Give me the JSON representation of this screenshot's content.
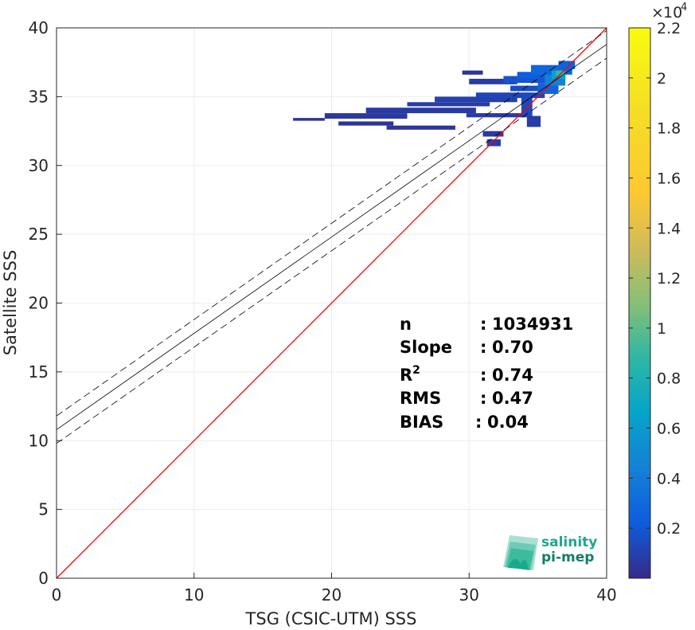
{
  "chart_data": {
    "type": "heatmap",
    "xlabel": "TSG (CSIC-UTM) SSS",
    "ylabel": "Satellite SSS",
    "xlim": [
      0,
      40
    ],
    "ylim": [
      0,
      40
    ],
    "xticks": [
      "0",
      "10",
      "20",
      "30",
      "40"
    ],
    "yticks": [
      "0",
      "5",
      "10",
      "15",
      "20",
      "25",
      "30",
      "35",
      "40"
    ],
    "grid": true,
    "lines": [
      {
        "name": "1:1",
        "color": "#ff0000",
        "style": "solid",
        "x": [
          0,
          40
        ],
        "y": [
          0,
          40
        ]
      },
      {
        "name": "fit",
        "color": "#000000",
        "style": "solid",
        "x": [
          0,
          40
        ],
        "y": [
          10.8,
          38.8
        ]
      },
      {
        "name": "fit+1std",
        "color": "#000000",
        "style": "dashed",
        "x": [
          0,
          40
        ],
        "y": [
          11.8,
          39.8
        ]
      },
      {
        "name": "fit-1std",
        "color": "#000000",
        "style": "dashed",
        "x": [
          0,
          40
        ],
        "y": [
          9.8,
          37.8
        ]
      }
    ],
    "density_blocks": [
      {
        "x0": 17.2,
        "x1": 19.5,
        "y0": 33.25,
        "y1": 33.45,
        "v": 300
      },
      {
        "x0": 19.5,
        "x1": 25.5,
        "y0": 33.4,
        "y1": 33.8,
        "v": 600
      },
      {
        "x0": 20.5,
        "x1": 24.5,
        "y0": 32.9,
        "y1": 33.2,
        "v": 400
      },
      {
        "x0": 22.5,
        "x1": 30.5,
        "y0": 33.8,
        "y1": 34.2,
        "v": 700
      },
      {
        "x0": 24.0,
        "x1": 29.0,
        "y0": 32.6,
        "y1": 32.9,
        "v": 500
      },
      {
        "x0": 25.5,
        "x1": 31.5,
        "y0": 34.3,
        "y1": 34.6,
        "v": 800
      },
      {
        "x0": 27.5,
        "x1": 33.5,
        "y0": 34.6,
        "y1": 35.0,
        "v": 1000
      },
      {
        "x0": 30.5,
        "x1": 35.5,
        "y0": 34.9,
        "y1": 35.3,
        "v": 1200
      },
      {
        "x0": 33.0,
        "x1": 36.0,
        "y0": 35.4,
        "y1": 35.8,
        "v": 1500
      },
      {
        "x0": 30.0,
        "x1": 33.5,
        "y0": 35.9,
        "y1": 36.3,
        "v": 900
      },
      {
        "x0": 32.5,
        "x1": 36.5,
        "y0": 36.0,
        "y1": 36.5,
        "v": 1800
      },
      {
        "x0": 33.5,
        "x1": 37.0,
        "y0": 36.3,
        "y1": 36.8,
        "v": 2200
      },
      {
        "x0": 34.5,
        "x1": 37.5,
        "y0": 36.6,
        "y1": 37.3,
        "v": 2800
      },
      {
        "x0": 36.5,
        "x1": 37.7,
        "y0": 37.0,
        "y1": 37.6,
        "v": 2500
      },
      {
        "x0": 29.5,
        "x1": 31.0,
        "y0": 36.6,
        "y1": 36.9,
        "v": 400
      },
      {
        "x0": 29.8,
        "x1": 34.5,
        "y0": 33.5,
        "y1": 33.8,
        "v": 700
      },
      {
        "x0": 31.0,
        "x1": 32.5,
        "y0": 32.1,
        "y1": 32.5,
        "v": 600
      },
      {
        "x0": 31.3,
        "x1": 32.3,
        "y0": 31.4,
        "y1": 31.9,
        "v": 900
      },
      {
        "x0": 33.8,
        "x1": 34.6,
        "y0": 33.6,
        "y1": 35.3,
        "v": 1300
      },
      {
        "x0": 34.2,
        "x1": 35.2,
        "y0": 32.8,
        "y1": 33.6,
        "v": 800
      },
      {
        "x0": 35.0,
        "x1": 36.5,
        "y0": 35.2,
        "y1": 36.0,
        "v": 2600
      },
      {
        "x0": 35.5,
        "x1": 37.0,
        "y0": 35.8,
        "y1": 36.6,
        "v": 4500
      },
      {
        "x0": 36.0,
        "x1": 37.0,
        "y0": 36.3,
        "y1": 36.9,
        "v": 6500
      },
      {
        "x0": 36.3,
        "x1": 36.9,
        "y0": 36.5,
        "y1": 36.9,
        "v": 9000
      }
    ],
    "colorbar": {
      "range": [
        0,
        22000
      ],
      "ticks": [
        2000,
        4000,
        6000,
        8000,
        10000,
        12000,
        14000,
        16000,
        18000,
        20000,
        22000
      ],
      "tick_labels": [
        "0.2",
        "0.4",
        "0.6",
        "0.8",
        "1",
        "1.2",
        "1.4",
        "1.6",
        "1.8",
        "2",
        "2.2"
      ],
      "exponent": "10"
    },
    "stats": [
      {
        "label": "n",
        "sep": ":",
        "value": "1034931"
      },
      {
        "label": "Slope",
        "sep": ":",
        "value": "0.70"
      },
      {
        "label": "R",
        "sup": "2",
        "sep": ":",
        "value": "0.74"
      },
      {
        "label": "RMS",
        "sep": ":",
        "value": "0.47"
      },
      {
        "label": "BIAS",
        "sep": ":",
        "value": "0.04"
      }
    ]
  },
  "logo": {
    "line1": "salinity",
    "line2": "pi-mep",
    "color": "#1ba98c"
  }
}
